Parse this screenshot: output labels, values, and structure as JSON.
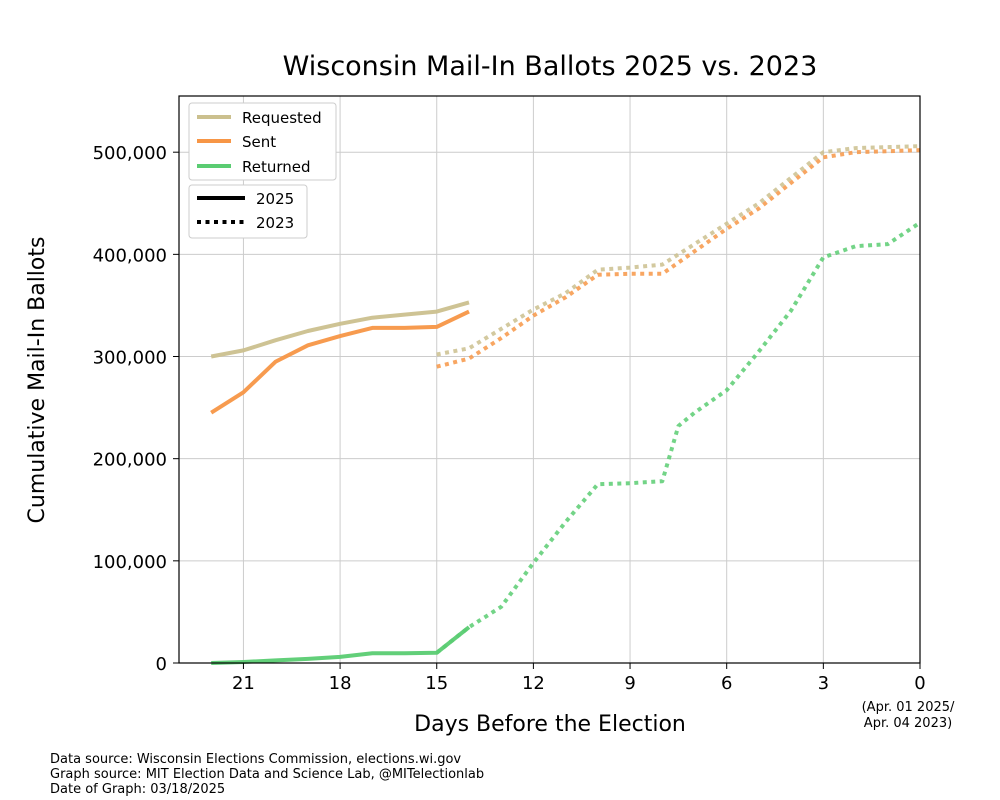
{
  "chart_data": {
    "type": "line",
    "title": "Wisconsin Mail-In Ballots 2025 vs. 2023",
    "xlabel": "Days Before the Election",
    "ylabel": "Cumulative Mail-In Ballots",
    "xlim": [
      23,
      0
    ],
    "ylim": [
      0,
      555000
    ],
    "x_ticks": [
      21,
      18,
      15,
      12,
      9,
      6,
      3,
      0
    ],
    "x_tick_labels": [
      "21",
      "18",
      "15",
      "12",
      "9",
      "6",
      "3",
      "0"
    ],
    "y_ticks": [
      0,
      100000,
      200000,
      300000,
      400000,
      500000
    ],
    "y_tick_labels": [
      "0",
      "100,000",
      "200,000",
      "300,000",
      "400,000",
      "500,000"
    ],
    "x_note": [
      "(Apr. 01 2025/",
      "Apr. 04 2023)"
    ],
    "grid": true,
    "legend_position": "top-left",
    "legend": {
      "metrics": [
        {
          "label": "Requested",
          "color": "#cbc08e"
        },
        {
          "label": "Sent",
          "color": "#f79646"
        },
        {
          "label": "Returned",
          "color": "#5acc72"
        }
      ],
      "years": [
        {
          "label": "2025",
          "style": "solid"
        },
        {
          "label": "2023",
          "style": "dotted"
        }
      ]
    },
    "series": [
      {
        "name": "Requested 2025",
        "metric": "Requested",
        "year": "2025",
        "style": "solid",
        "color": "#cbc08e",
        "x": [
          22,
          21,
          20,
          19,
          18,
          17,
          16,
          15,
          14
        ],
        "y": [
          300000,
          306000,
          316000,
          325000,
          332000,
          338000,
          341000,
          344000,
          353000
        ]
      },
      {
        "name": "Sent 2025",
        "metric": "Sent",
        "year": "2025",
        "style": "solid",
        "color": "#f79646",
        "x": [
          22,
          21,
          20,
          19,
          18,
          17,
          16,
          15,
          14
        ],
        "y": [
          245000,
          265000,
          295000,
          311000,
          320000,
          328000,
          328000,
          329000,
          344000
        ]
      },
      {
        "name": "Returned 2025",
        "metric": "Returned",
        "year": "2025",
        "style": "solid",
        "color": "#5acc72",
        "x": [
          22,
          21,
          20,
          19,
          18,
          17,
          16,
          15,
          14
        ],
        "y": [
          0,
          1000,
          2500,
          4000,
          6000,
          9500,
          9500,
          10000,
          35000
        ]
      },
      {
        "name": "Requested 2023",
        "metric": "Requested",
        "year": "2023",
        "style": "dotted",
        "color": "#cbc08e",
        "x": [
          15,
          14,
          13,
          12,
          11,
          10,
          9,
          8,
          7,
          6,
          5,
          4,
          3,
          2,
          1,
          0
        ],
        "y": [
          302000,
          308000,
          327000,
          346000,
          362000,
          385000,
          387000,
          390000,
          410000,
          430000,
          450000,
          475000,
          500000,
          504000,
          505000,
          506000
        ]
      },
      {
        "name": "Sent 2023",
        "metric": "Sent",
        "year": "2023",
        "style": "dotted",
        "color": "#f79646",
        "x": [
          15,
          14,
          13,
          12,
          11,
          10,
          9,
          8,
          7,
          6,
          5,
          4,
          3,
          2,
          1,
          0
        ],
        "y": [
          290000,
          298000,
          318000,
          340000,
          358000,
          380000,
          381000,
          381000,
          403000,
          425000,
          445000,
          470000,
          495000,
          500000,
          501000,
          502000
        ]
      },
      {
        "name": "Returned 2023",
        "metric": "Returned",
        "year": "2023",
        "style": "dotted",
        "color": "#5acc72",
        "x": [
          15,
          14,
          13,
          12,
          11,
          10,
          9,
          8,
          7.5,
          7,
          6,
          5,
          4,
          3,
          2,
          1,
          0
        ],
        "y": [
          10000,
          35000,
          55000,
          98000,
          138000,
          175000,
          176000,
          178000,
          232000,
          245000,
          267000,
          305000,
          345000,
          397000,
          408000,
          410000,
          431000
        ]
      }
    ]
  },
  "footer": {
    "line1": "Data source: Wisconsin Elections Commission, elections.wi.gov",
    "line2": "Graph source: MIT Election Data and Science Lab, @MITelectionlab",
    "line3": "Date of Graph: 03/18/2025"
  }
}
